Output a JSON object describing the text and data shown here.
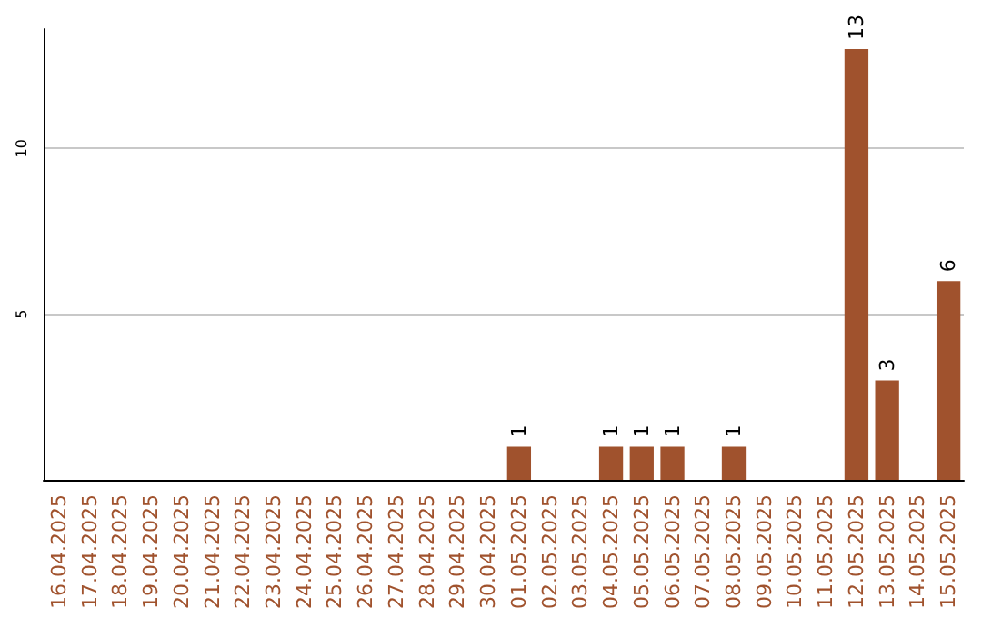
{
  "chart_data": {
    "type": "bar",
    "categories": [
      "16.04.2025",
      "17.04.2025",
      "18.04.2025",
      "19.04.2025",
      "20.04.2025",
      "21.04.2025",
      "22.04.2025",
      "23.04.2025",
      "24.04.2025",
      "25.04.2025",
      "26.04.2025",
      "27.04.2025",
      "28.04.2025",
      "29.04.2025",
      "30.04.2025",
      "01.05.2025",
      "02.05.2025",
      "03.05.2025",
      "04.05.2025",
      "05.05.2025",
      "06.05.2025",
      "07.05.2025",
      "08.05.2025",
      "09.05.2025",
      "10.05.2025",
      "11.05.2025",
      "12.05.2025",
      "13.05.2025",
      "14.05.2025",
      "15.05.2025"
    ],
    "values": [
      0,
      0,
      0,
      0,
      0,
      0,
      0,
      0,
      0,
      0,
      0,
      0,
      0,
      0,
      0,
      1,
      0,
      0,
      1,
      1,
      1,
      0,
      1,
      0,
      0,
      0,
      13,
      3,
      0,
      6
    ],
    "value_labels": [
      null,
      null,
      null,
      null,
      null,
      null,
      null,
      null,
      null,
      null,
      null,
      null,
      null,
      null,
      null,
      "1",
      null,
      null,
      "1",
      "1",
      "1",
      null,
      "1",
      null,
      null,
      null,
      "13",
      "3",
      null,
      "6"
    ],
    "color": "#a0522d",
    "ylim": [
      0,
      13.6
    ],
    "yticks": [
      5,
      10
    ],
    "grid": "y"
  }
}
